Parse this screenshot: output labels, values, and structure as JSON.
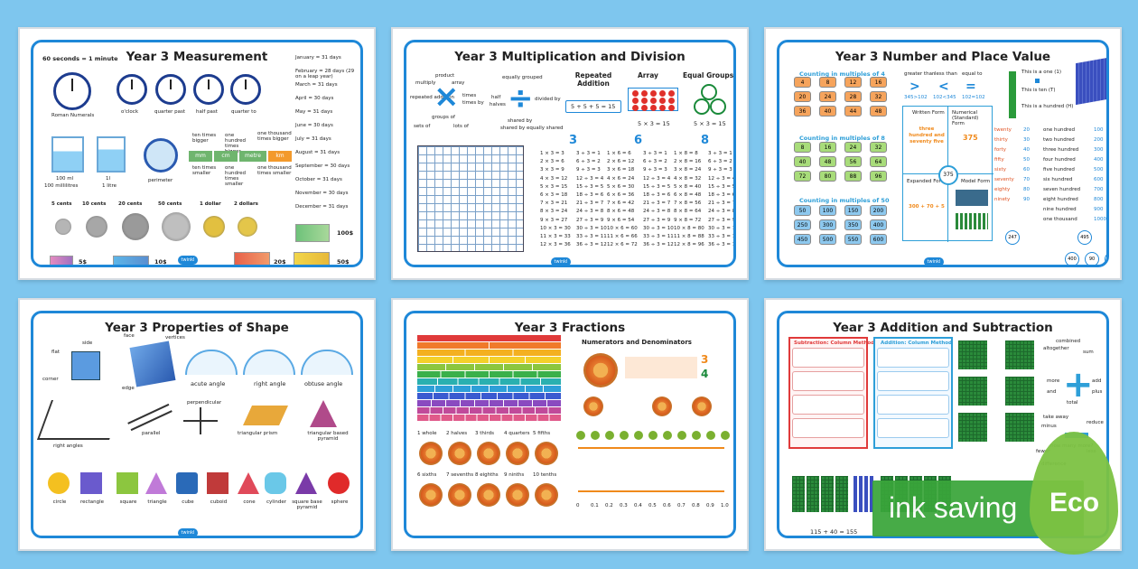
{
  "mats": {
    "measurement": {
      "title": "Year 3 Measurement",
      "seconds": "60 seconds = 1 minute",
      "months": [
        "January = 31 days",
        "February = 28 days (29 on a leap year)",
        "March = 31 days",
        "April = 30 days",
        "May = 31 days",
        "June = 30 days",
        "July = 31 days",
        "August = 31 days",
        "September = 30 days",
        "October = 31 days",
        "November = 30 days",
        "December = 31 days"
      ],
      "clock_labels": [
        "Roman Numerals",
        "o'clock",
        "quarter past",
        "half past",
        "quarter to"
      ],
      "jug_labels": [
        "100 ml",
        "100 millilitres",
        "1l",
        "1 litre"
      ],
      "perimeter": "perimeter",
      "bars": [
        "ten times bigger",
        "one hundred times bigger",
        "one thousand times bigger",
        "one hundred times smaller",
        "ten times smaller",
        "one thousand times smaller",
        "cm",
        "mm",
        "metre",
        "km"
      ],
      "coins": [
        "5 cents",
        "10 cents",
        "20 cents",
        "50 cents",
        "1 dollar",
        "2 dollars"
      ],
      "notes": [
        "5$",
        "10$",
        "20$",
        "50$",
        "100$"
      ]
    },
    "multiplication": {
      "title": "Year 3 Multiplication and Division",
      "times_words": [
        "product",
        "multiply",
        "array",
        "repeated addition",
        "times",
        "times by",
        "groups of",
        "sets of",
        "lots of"
      ],
      "div_words": [
        "equally grouped",
        "half",
        "halves",
        "divided by",
        "shared by",
        "shared by equally shared"
      ],
      "headers": [
        "Repeated Addition",
        "Array",
        "Equal Groups"
      ],
      "sums": [
        "5 + 5 + 5 = 15",
        "5 × 3 = 15",
        "5 × 3 = 15"
      ],
      "tables": [
        "3",
        "6",
        "8"
      ],
      "three": [
        "1 × 3 = 3",
        "2 × 3 = 6",
        "3 × 3 = 9",
        "4 × 3 = 12",
        "5 × 3 = 15",
        "6 × 3 = 18",
        "7 × 3 = 21",
        "8 × 3 = 24",
        "9 × 3 = 27",
        "10 × 3 = 30",
        "11 × 3 = 33",
        "12 × 3 = 36"
      ],
      "six": [
        "1 × 6 = 6",
        "2 × 6 = 12",
        "3 × 6 = 18",
        "4 × 6 = 24",
        "5 × 6 = 30",
        "6 × 6 = 36",
        "7 × 6 = 42",
        "8 × 6 = 48",
        "9 × 6 = 54",
        "10 × 6 = 60",
        "11 × 6 = 66",
        "12 × 6 = 72"
      ],
      "eight": [
        "1 × 8 = 8",
        "2 × 8 = 16",
        "3 × 8 = 24",
        "4 × 8 = 32",
        "5 × 8 = 40",
        "6 × 8 = 48",
        "7 × 8 = 56",
        "8 × 8 = 64",
        "9 × 8 = 72",
        "10 × 8 = 80",
        "11 × 8 = 88",
        "12 × 8 = 96"
      ],
      "divs": [
        "3 ÷ 3 = 1",
        "6 ÷ 3 = 2",
        "9 ÷ 3 = 3",
        "12 ÷ 3 = 4",
        "15 ÷ 3 = 5",
        "18 ÷ 3 = 6",
        "21 ÷ 3 = 7",
        "24 ÷ 3 = 8",
        "27 ÷ 3 = 9",
        "30 ÷ 3 = 10",
        "33 ÷ 3 = 11",
        "36 ÷ 3 = 12"
      ]
    },
    "place_value": {
      "title": "Year 3 Number and Place Value",
      "groups": [
        "Counting in multiples of 4",
        "Counting in multiples of 8",
        "Counting in multiples of 50"
      ],
      "fours": [
        "4",
        "8",
        "12",
        "16",
        "20",
        "24",
        "28",
        "32",
        "36",
        "40",
        "44",
        "48"
      ],
      "eights": [
        "8",
        "16",
        "24",
        "32",
        "40",
        "48",
        "56",
        "64",
        "72",
        "80",
        "88",
        "96"
      ],
      "fifties": [
        "50",
        "100",
        "150",
        "200",
        "250",
        "300",
        "350",
        "400",
        "450",
        "500",
        "550",
        "600"
      ],
      "compare": [
        "greater than",
        "less than",
        "equal to",
        ">",
        "<",
        "=",
        "345>102",
        "102<345",
        "102=102"
      ],
      "forms": [
        "Written Form",
        "three hundred and seventy five",
        "Numerical (Standard) Form",
        "375",
        "Expanded Form",
        "300 + 70 + 5",
        "Model Form"
      ],
      "units": [
        "This is a one (1)",
        "This is ten (T)",
        "This is a hundred (H)"
      ],
      "tens_words": [
        "twenty",
        "thirty",
        "forty",
        "fifty",
        "sixty",
        "seventy",
        "eighty",
        "ninety"
      ],
      "tens": [
        "20",
        "30",
        "40",
        "50",
        "60",
        "70",
        "80",
        "90"
      ],
      "hundred_words": [
        "one hundred",
        "two hundred",
        "three hundred",
        "four hundred",
        "five hundred",
        "six hundred",
        "seven hundred",
        "eight hundred",
        "nine hundred",
        "one thousand"
      ],
      "hundreds": [
        "100",
        "200",
        "300",
        "400",
        "500",
        "600",
        "700",
        "800",
        "900",
        "1000"
      ],
      "partition": [
        "247",
        "495",
        "400",
        "90",
        "5"
      ]
    },
    "shape": {
      "title": "Year 3 Properties of Shape",
      "labels": [
        "side",
        "flat",
        "corner",
        "face",
        "vertices",
        "edge",
        "acute angle",
        "right angle",
        "obtuse angle",
        "perpendicular",
        "right angles",
        "parallel",
        "triangular prism",
        "triangular based pyramid"
      ],
      "shapes": [
        "circle",
        "rectangle",
        "square",
        "triangle",
        "cube",
        "cuboid",
        "cone",
        "cylinder",
        "square base pyramid",
        "sphere"
      ]
    },
    "fractions": {
      "title": "Year 3 Fractions",
      "subtitle": "Numerators and Denominators",
      "pizzas1": [
        "1 whole",
        "2 halves",
        "3 thirds",
        "4 quarters",
        "5 fifths"
      ],
      "pizzas2": [
        "6 sixths",
        "7 sevenths",
        "8 eighths",
        "9 ninths",
        "10 tenths"
      ],
      "tenths": [
        "0",
        "0.1",
        "0.2",
        "0.3",
        "0.4",
        "0.5",
        "0.6",
        "0.7",
        "0.8",
        "0.9",
        "1.0"
      ]
    },
    "addition": {
      "title": "Year 3 Addition and Subtraction",
      "methods": [
        "Subtraction: Column Method",
        "Addition: Column Method"
      ],
      "words": [
        "combined",
        "altogether",
        "sum",
        "more",
        "add",
        "and",
        "plus",
        "total",
        "take away",
        "minus",
        "reduce",
        "how many more?",
        "fewer",
        "less",
        "difference"
      ],
      "sum": "115 + 40 = 155"
    }
  },
  "badge": {
    "text": "ink saving",
    "eco": "Eco"
  },
  "colors": {
    "background": "#7ec6ee",
    "border": "#1e88d8",
    "badge": "#3aa53a",
    "leaf": "#7cc242"
  }
}
